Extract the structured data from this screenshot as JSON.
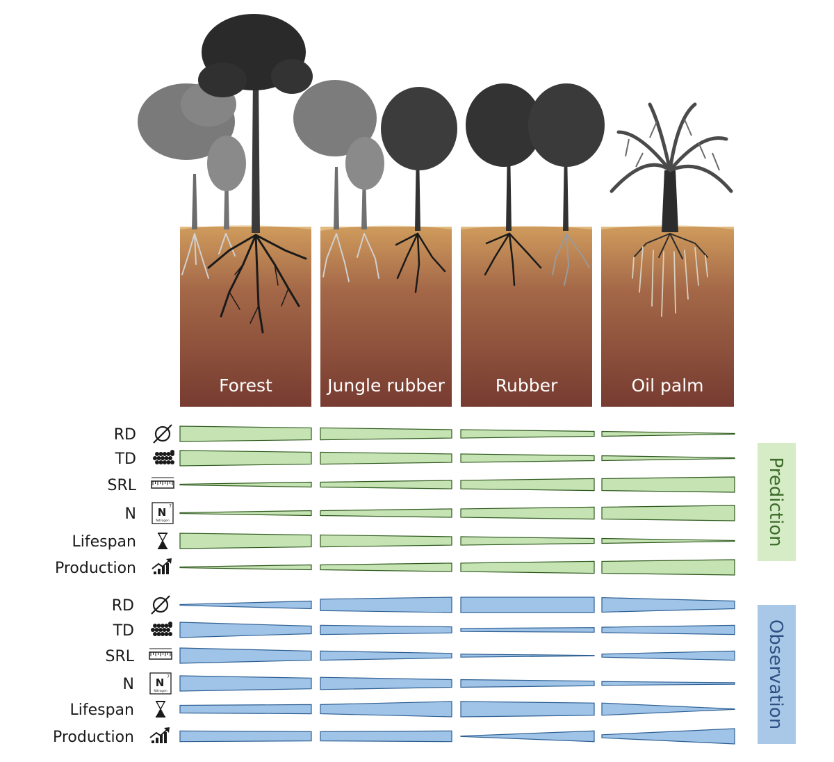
{
  "systems": [
    {
      "label": "Forest"
    },
    {
      "label": "Jungle rubber"
    },
    {
      "label": "Rubber"
    },
    {
      "label": "Oil palm"
    }
  ],
  "icons": {
    "RD": "diameter-icon",
    "TD": "tissue-density-icon",
    "SRL": "ruler-icon",
    "N": "nitrogen-icon",
    "Lifespan": "hourglass-icon",
    "Production": "growth-chart-icon"
  },
  "nitrogen_icon": {
    "symbol": "N",
    "number": "7",
    "name": "Nitrogen"
  },
  "colors": {
    "prediction_fill": "#c6e3b4",
    "prediction_stroke": "#2f5a1e",
    "prediction_box": "#d5ecc7",
    "prediction_text": "#3d6b2a",
    "observation_fill": "#9fc4e8",
    "observation_stroke": "#2e5f92",
    "observation_box": "#a9c8e8",
    "observation_text": "#2e5083",
    "soil_top": "#c8965a",
    "soil_bottom": "#7a3f33"
  },
  "prediction": {
    "label": "Prediction",
    "rows": [
      {
        "trait": "RD",
        "widths": [
          1.0,
          0.78,
          0.78,
          0.55,
          0.55,
          0.32,
          0.32,
          0.05
        ]
      },
      {
        "trait": "TD",
        "widths": [
          1.0,
          0.78,
          0.78,
          0.55,
          0.55,
          0.32,
          0.32,
          0.05
        ]
      },
      {
        "trait": "SRL",
        "widths": [
          0.05,
          0.32,
          0.32,
          0.55,
          0.55,
          0.78,
          0.78,
          1.0
        ]
      },
      {
        "trait": "N",
        "widths": [
          0.05,
          0.32,
          0.32,
          0.55,
          0.55,
          0.78,
          0.78,
          1.0
        ]
      },
      {
        "trait": "Lifespan",
        "widths": [
          1.0,
          0.78,
          0.78,
          0.55,
          0.55,
          0.32,
          0.32,
          0.05
        ]
      },
      {
        "trait": "Production",
        "widths": [
          0.05,
          0.32,
          0.32,
          0.55,
          0.55,
          0.78,
          0.78,
          1.0
        ]
      }
    ]
  },
  "observation": {
    "label": "Observation",
    "rows": [
      {
        "trait": "RD",
        "widths": [
          0.05,
          0.5,
          0.75,
          1.0,
          1.0,
          1.0,
          0.95,
          0.5
        ]
      },
      {
        "trait": "TD",
        "widths": [
          1.0,
          0.5,
          0.6,
          0.4,
          0.2,
          0.3,
          0.35,
          0.6
        ]
      },
      {
        "trait": "SRL",
        "widths": [
          1.0,
          0.6,
          0.6,
          0.3,
          0.2,
          0.0,
          0.2,
          0.6
        ]
      },
      {
        "trait": "N",
        "widths": [
          1.0,
          0.7,
          0.8,
          0.5,
          0.5,
          0.3,
          0.25,
          0.1
        ]
      },
      {
        "trait": "Lifespan",
        "widths": [
          0.5,
          0.6,
          0.6,
          1.0,
          1.0,
          0.8,
          0.8,
          0.0
        ]
      },
      {
        "trait": "Production",
        "widths": [
          0.7,
          0.6,
          0.6,
          0.7,
          0.0,
          0.7,
          0.2,
          1.0
        ]
      }
    ]
  }
}
